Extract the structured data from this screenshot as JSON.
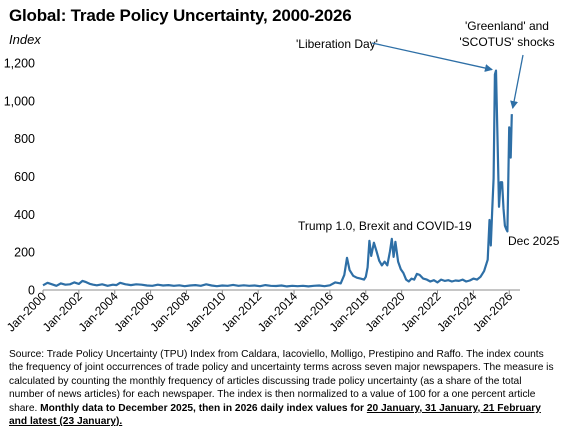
{
  "title": "Global: Trade Policy Uncertainty, 2000-2026",
  "y_unit": "Index",
  "source_note": {
    "plain": "Source: Trade Policy Uncertainty (TPU) Index from Caldara, Iacoviello, Molligo, Prestipino and Raffo. The index counts the frequency of joint occurrences of trade policy and uncertainty terms across seven major newspapers. The measure is calculated by counting the monthly frequency of articles discussing trade policy uncertainty (as a share of the total number of news articles) for each newspaper. The index is then normalized to a value of 100 for a one percent article share.",
    "bold_lead": "Monthly data to December 2025,  then in 2026 daily index values for",
    "bold_dates": "20 January, 31 January, 21 February and latest (23 January)."
  },
  "chart_data": {
    "type": "line",
    "title": "Global: Trade Policy Uncertainty, 2000-2026",
    "ylabel": "Index",
    "ylim": [
      0,
      1200
    ],
    "yticks": [
      0,
      200,
      400,
      600,
      800,
      1000,
      1200
    ],
    "ytick_labels": [
      "0",
      "200",
      "400",
      "600",
      "800",
      "1,000",
      "1,200"
    ],
    "xlim": [
      2000,
      2026.6
    ],
    "xticks": [
      2000,
      2002,
      2004,
      2006,
      2008,
      2010,
      2012,
      2014,
      2016,
      2018,
      2020,
      2022,
      2024,
      2026
    ],
    "xtick_labels": [
      "Jan-2000",
      "Jan-2002",
      "Jan-2004",
      "Jan-2006",
      "Jan-2008",
      "Jan-2010",
      "Jan-2012",
      "Jan-2014",
      "Jan-2016",
      "Jan-2018",
      "Jan-2020",
      "Jan-2022",
      "Jan-2024",
      "Jan-2026"
    ],
    "grid": false,
    "color": "#2e6fa6",
    "series": [
      {
        "points": [
          [
            2000.0,
            25
          ],
          [
            2000.25,
            38
          ],
          [
            2000.5,
            30
          ],
          [
            2000.75,
            22
          ],
          [
            2001.0,
            35
          ],
          [
            2001.25,
            28
          ],
          [
            2001.5,
            30
          ],
          [
            2001.75,
            40
          ],
          [
            2002.0,
            32
          ],
          [
            2002.2,
            48
          ],
          [
            2002.4,
            42
          ],
          [
            2002.6,
            33
          ],
          [
            2002.8,
            28
          ],
          [
            2003.0,
            25
          ],
          [
            2003.3,
            30
          ],
          [
            2003.6,
            22
          ],
          [
            2003.9,
            28
          ],
          [
            2004.1,
            26
          ],
          [
            2004.3,
            38
          ],
          [
            2004.6,
            30
          ],
          [
            2004.9,
            26
          ],
          [
            2005.2,
            30
          ],
          [
            2005.5,
            28
          ],
          [
            2005.8,
            24
          ],
          [
            2006.1,
            22
          ],
          [
            2006.4,
            28
          ],
          [
            2006.7,
            24
          ],
          [
            2007.0,
            26
          ],
          [
            2007.3,
            22
          ],
          [
            2007.6,
            25
          ],
          [
            2007.9,
            20
          ],
          [
            2008.2,
            24
          ],
          [
            2008.5,
            26
          ],
          [
            2008.8,
            22
          ],
          [
            2009.1,
            30
          ],
          [
            2009.4,
            24
          ],
          [
            2009.7,
            20
          ],
          [
            2010.0,
            24
          ],
          [
            2010.3,
            22
          ],
          [
            2010.6,
            27
          ],
          [
            2010.9,
            22
          ],
          [
            2011.2,
            25
          ],
          [
            2011.5,
            22
          ],
          [
            2011.8,
            24
          ],
          [
            2012.1,
            20
          ],
          [
            2012.4,
            26
          ],
          [
            2012.7,
            22
          ],
          [
            2013.0,
            21
          ],
          [
            2013.3,
            24
          ],
          [
            2013.6,
            19
          ],
          [
            2013.9,
            22
          ],
          [
            2014.2,
            20
          ],
          [
            2014.5,
            22
          ],
          [
            2014.8,
            19
          ],
          [
            2015.1,
            22
          ],
          [
            2015.4,
            24
          ],
          [
            2015.7,
            20
          ],
          [
            2016.0,
            25
          ],
          [
            2016.3,
            40
          ],
          [
            2016.6,
            35
          ],
          [
            2016.8,
            80
          ],
          [
            2016.95,
            170
          ],
          [
            2017.1,
            105
          ],
          [
            2017.3,
            75
          ],
          [
            2017.5,
            65
          ],
          [
            2017.7,
            60
          ],
          [
            2017.9,
            55
          ],
          [
            2018.0,
            70
          ],
          [
            2018.1,
            120
          ],
          [
            2018.2,
            260
          ],
          [
            2018.3,
            180
          ],
          [
            2018.45,
            250
          ],
          [
            2018.6,
            205
          ],
          [
            2018.75,
            155
          ],
          [
            2018.9,
            130
          ],
          [
            2019.05,
            150
          ],
          [
            2019.2,
            130
          ],
          [
            2019.35,
            205
          ],
          [
            2019.45,
            270
          ],
          [
            2019.55,
            175
          ],
          [
            2019.65,
            255
          ],
          [
            2019.8,
            150
          ],
          [
            2019.95,
            110
          ],
          [
            2020.1,
            90
          ],
          [
            2020.25,
            55
          ],
          [
            2020.4,
            45
          ],
          [
            2020.55,
            60
          ],
          [
            2020.7,
            55
          ],
          [
            2020.85,
            85
          ],
          [
            2021.0,
            80
          ],
          [
            2021.2,
            60
          ],
          [
            2021.4,
            55
          ],
          [
            2021.6,
            45
          ],
          [
            2021.8,
            52
          ],
          [
            2022.0,
            40
          ],
          [
            2022.2,
            55
          ],
          [
            2022.4,
            48
          ],
          [
            2022.6,
            52
          ],
          [
            2022.8,
            45
          ],
          [
            2023.0,
            50
          ],
          [
            2023.2,
            48
          ],
          [
            2023.4,
            55
          ],
          [
            2023.6,
            45
          ],
          [
            2023.8,
            50
          ],
          [
            2024.0,
            60
          ],
          [
            2024.2,
            55
          ],
          [
            2024.4,
            70
          ],
          [
            2024.6,
            100
          ],
          [
            2024.8,
            160
          ],
          [
            2024.9,
            370
          ],
          [
            2024.97,
            235
          ],
          [
            2025.05,
            420
          ],
          [
            2025.13,
            590
          ],
          [
            2025.2,
            1140
          ],
          [
            2025.26,
            1160
          ],
          [
            2025.35,
            780
          ],
          [
            2025.43,
            440
          ],
          [
            2025.52,
            570
          ],
          [
            2025.6,
            570
          ],
          [
            2025.68,
            430
          ],
          [
            2025.76,
            340
          ],
          [
            2025.84,
            320
          ],
          [
            2025.9,
            310
          ],
          [
            2026.0,
            860
          ],
          [
            2026.08,
            700
          ],
          [
            2026.14,
            930
          ]
        ]
      }
    ],
    "annotations": [
      {
        "text": "'Liberation Day'",
        "x": 2025.26,
        "y": 1160
      },
      {
        "text": "'Greenland' and",
        "x": 2026.14,
        "y": 930
      },
      {
        "text": "'SCOTUS' shocks",
        "x": 2026.14,
        "y": 930
      },
      {
        "text": "Trump 1.0,  Brexit and COVID-19",
        "x": 2018.5,
        "y": 270
      },
      {
        "text": "Dec 2025",
        "x": 2025.9,
        "y": 310
      }
    ]
  }
}
